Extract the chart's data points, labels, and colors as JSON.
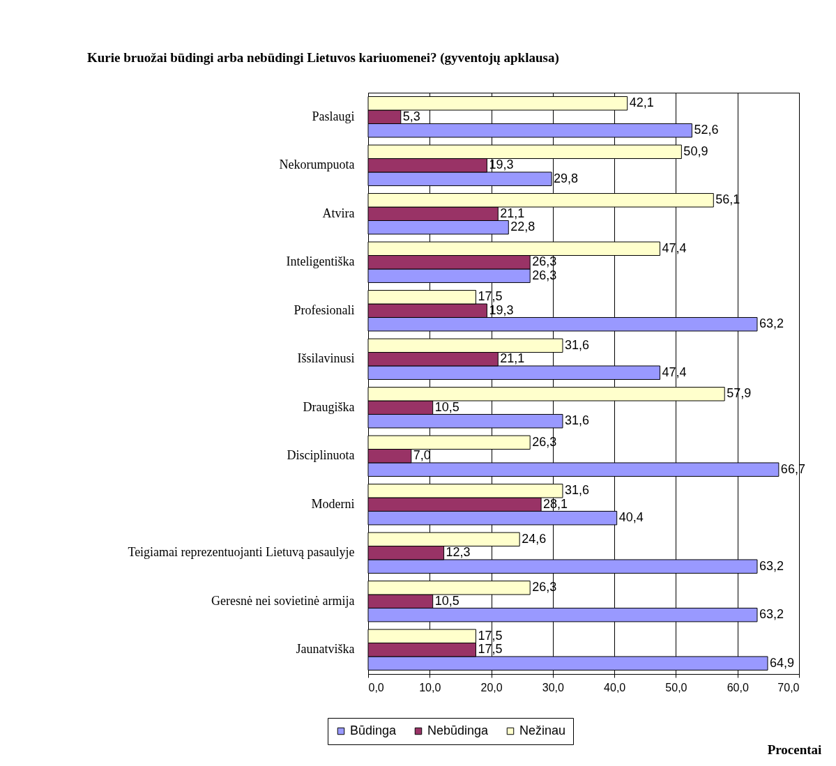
{
  "chart_data": {
    "type": "bar",
    "orientation": "horizontal",
    "title": "Kurie bruožai būdingi arba nebūdingi Lietuvos kariuomenei? (gyventojų apklausa)",
    "xlabel": "Procentai",
    "categories": [
      "Paslaugi",
      "Nekorumpuota",
      "Atvira",
      "Inteligentiška",
      "Profesionali",
      "Išsilavinusi",
      "Draugiška",
      "Disciplinuota",
      "Moderni",
      "Teigiamai reprezentuojanti Lietuvą pasaulyje",
      "Geresnė nei sovietinė armija",
      "Jaunatviška"
    ],
    "series": [
      {
        "name": "Būdinga",
        "color": "#9999ff",
        "values": [
          52.6,
          29.8,
          22.8,
          26.3,
          63.2,
          47.4,
          31.6,
          66.7,
          40.4,
          63.2,
          63.2,
          64.9
        ],
        "value_labels": [
          "52,6",
          "29,8",
          "22,8",
          "26,3",
          "63,2",
          "47,4",
          "31,6",
          "66,7",
          "40,4",
          "63,2",
          "63,2",
          "64,9"
        ]
      },
      {
        "name": "Nebūdinga",
        "color": "#993366",
        "values": [
          5.3,
          19.3,
          21.1,
          26.3,
          19.3,
          21.1,
          10.5,
          7.0,
          28.1,
          12.3,
          10.5,
          17.5
        ],
        "value_labels": [
          "5,3",
          "19,3",
          "21,1",
          "26,3",
          "19,3",
          "21,1",
          "10,5",
          "7,0",
          "28,1",
          "12,3",
          "10,5",
          "17,5"
        ]
      },
      {
        "name": "Nežinau",
        "color": "#ffffcc",
        "values": [
          42.1,
          50.9,
          56.1,
          47.4,
          17.5,
          31.6,
          57.9,
          26.3,
          31.6,
          24.6,
          26.3,
          17.5
        ],
        "value_labels": [
          "42,1",
          "50,9",
          "56,1",
          "47,4",
          "17,5",
          "31,6",
          "57,9",
          "26,3",
          "31,6",
          "24,6",
          "26,3",
          "17,5"
        ]
      }
    ],
    "xlim": [
      0,
      70
    ],
    "xticks": [
      {
        "value": 0,
        "label": "0,0"
      },
      {
        "value": 10,
        "label": "10,0"
      },
      {
        "value": 20,
        "label": "20,0"
      },
      {
        "value": 30,
        "label": "30,0"
      },
      {
        "value": 40,
        "label": "40,0"
      },
      {
        "value": 50,
        "label": "50,0"
      },
      {
        "value": 60,
        "label": "60,0"
      },
      {
        "value": 70,
        "label": "70,0"
      }
    ],
    "grid": "x",
    "legend": "bottom"
  }
}
